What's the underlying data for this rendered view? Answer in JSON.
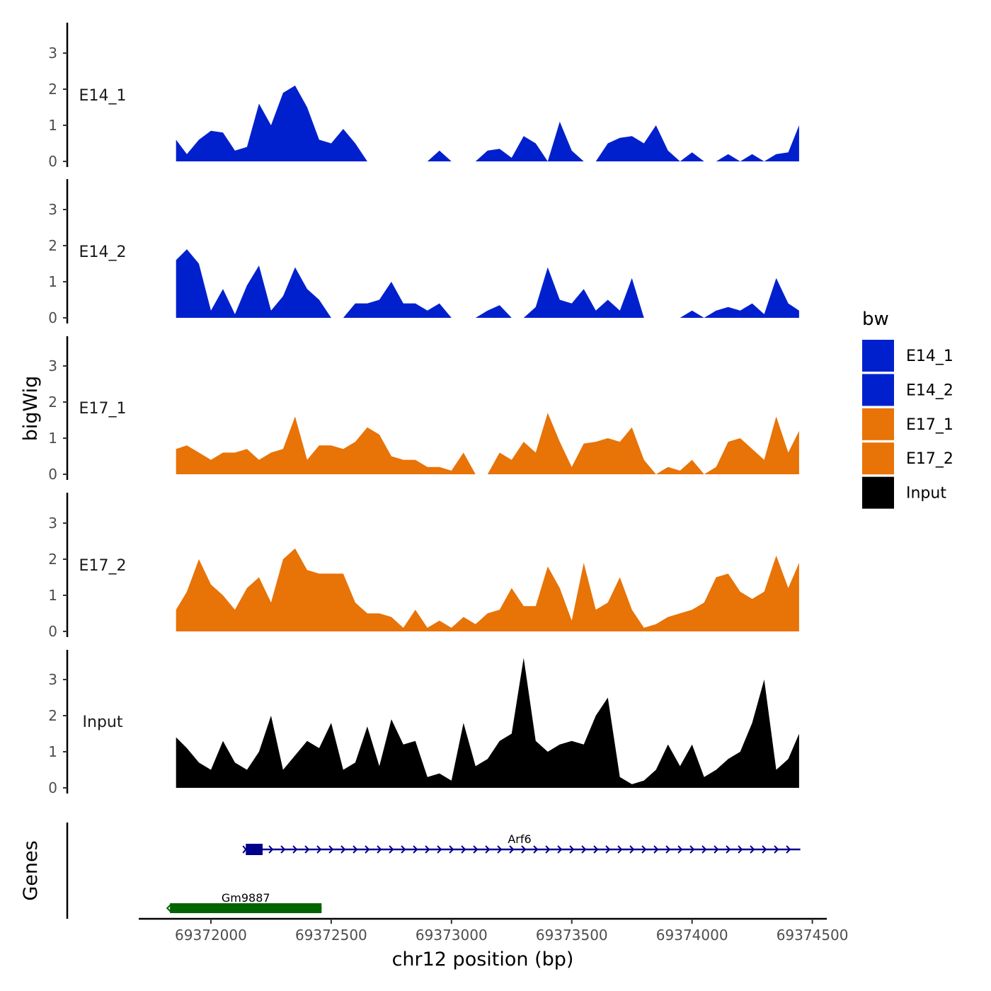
{
  "chart_data": {
    "type": "area",
    "xlabel": "chr12 position (bp)",
    "ylabel": "bigWig",
    "genes_label": "Genes",
    "xlim": [
      69371700,
      69374560
    ],
    "ylim": [
      0,
      3.9
    ],
    "x_ticks": [
      69372000,
      69372500,
      69373000,
      69373500,
      69374000,
      69374500
    ],
    "x_tick_labels": [
      "69372000",
      "69372500",
      "69373000",
      "69373500",
      "69374000",
      "69374500"
    ],
    "y_ticks": [
      0,
      1,
      2,
      3
    ],
    "y_tick_labels": [
      "0",
      "1",
      "2",
      "3"
    ],
    "legend": {
      "title": "bw",
      "items": [
        {
          "label": "E14_1",
          "color": "#0020CD"
        },
        {
          "label": "E14_2",
          "color": "#0020CD"
        },
        {
          "label": "E17_1",
          "color": "#E87307"
        },
        {
          "label": "E17_2",
          "color": "#E87307"
        },
        {
          "label": "Input",
          "color": "#000000"
        }
      ]
    },
    "x": [
      69371855,
      69371900,
      69371950,
      69372000,
      69372050,
      69372100,
      69372150,
      69372200,
      69372250,
      69372300,
      69372350,
      69372400,
      69372450,
      69372500,
      69372550,
      69372600,
      69372650,
      69372700,
      69372750,
      69372800,
      69372850,
      69372900,
      69372950,
      69373000,
      69373050,
      69373100,
      69373150,
      69373200,
      69373250,
      69373300,
      69373350,
      69373400,
      69373450,
      69373500,
      69373550,
      69373600,
      69373650,
      69373700,
      69373750,
      69373800,
      69373850,
      69373900,
      69373950,
      69374000,
      69374050,
      69374100,
      69374150,
      69374200,
      69374250,
      69374300,
      69374350,
      69374400,
      69374445
    ],
    "series": [
      {
        "name": "E14_1",
        "color": "#0020CD",
        "values": [
          0.6,
          0.2,
          0.6,
          0.85,
          0.8,
          0.3,
          0.4,
          1.6,
          1.0,
          1.9,
          2.1,
          1.5,
          0.6,
          0.5,
          0.9,
          0.5,
          0,
          0,
          0,
          0,
          0,
          0,
          0.3,
          0,
          0,
          0,
          0.3,
          0.35,
          0.1,
          0.7,
          0.5,
          0,
          1.1,
          0.3,
          0,
          0,
          0.5,
          0.65,
          0.7,
          0.5,
          1.0,
          0.3,
          0,
          0.25,
          0,
          0,
          0.2,
          0,
          0.2,
          0,
          0.2,
          0.25,
          1.0
        ]
      },
      {
        "name": "E14_2",
        "color": "#0020CD",
        "values": [
          1.6,
          1.9,
          1.5,
          0.2,
          0.8,
          0.1,
          0.9,
          1.45,
          0.2,
          0.6,
          1.4,
          0.8,
          0.5,
          0,
          0,
          0.4,
          0.4,
          0.5,
          1.0,
          0.4,
          0.4,
          0.2,
          0.4,
          0,
          0,
          0,
          0.2,
          0.35,
          0,
          0,
          0.3,
          1.4,
          0.5,
          0.4,
          0.8,
          0.2,
          0.5,
          0.2,
          1.1,
          0,
          0,
          0,
          0,
          0.2,
          0,
          0.2,
          0.3,
          0.2,
          0.4,
          0.1,
          1.1,
          0.4,
          0.2
        ]
      },
      {
        "name": "E17_1",
        "color": "#E87307",
        "values": [
          0.7,
          0.8,
          0.6,
          0.4,
          0.6,
          0.6,
          0.7,
          0.4,
          0.6,
          0.7,
          1.6,
          0.4,
          0.8,
          0.8,
          0.7,
          0.9,
          1.3,
          1.1,
          0.5,
          0.4,
          0.4,
          0.2,
          0.2,
          0.1,
          0.6,
          0,
          0,
          0.6,
          0.4,
          0.9,
          0.6,
          1.7,
          0.9,
          0.2,
          0.85,
          0.9,
          1.0,
          0.9,
          1.3,
          0.4,
          0,
          0.2,
          0.1,
          0.4,
          0,
          0.2,
          0.9,
          1.0,
          0.7,
          0.4,
          1.6,
          0.6,
          1.2
        ]
      },
      {
        "name": "E17_2",
        "color": "#E87307",
        "values": [
          0.6,
          1.1,
          2.0,
          1.3,
          1.0,
          0.6,
          1.2,
          1.5,
          0.8,
          2.0,
          2.3,
          1.7,
          1.6,
          1.6,
          1.6,
          0.8,
          0.5,
          0.5,
          0.4,
          0.1,
          0.6,
          0.1,
          0.3,
          0.1,
          0.4,
          0.2,
          0.5,
          0.6,
          1.2,
          0.7,
          0.7,
          1.8,
          1.2,
          0.3,
          1.9,
          0.6,
          0.8,
          1.5,
          0.6,
          0.1,
          0.2,
          0.4,
          0.5,
          0.6,
          0.8,
          1.5,
          1.6,
          1.1,
          0.9,
          1.1,
          2.1,
          1.2,
          1.9
        ]
      },
      {
        "name": "Input",
        "color": "#000000",
        "values": [
          1.4,
          1.1,
          0.7,
          0.5,
          1.3,
          0.7,
          0.5,
          1.0,
          2.0,
          0.5,
          0.9,
          1.3,
          1.1,
          1.8,
          0.5,
          0.7,
          1.7,
          0.6,
          1.9,
          1.2,
          1.3,
          0.3,
          0.4,
          0.2,
          1.8,
          0.6,
          0.8,
          1.3,
          1.5,
          3.6,
          1.3,
          1.0,
          1.2,
          1.3,
          1.2,
          2.0,
          2.5,
          0.3,
          0.1,
          0.2,
          0.5,
          1.2,
          0.6,
          1.2,
          0.3,
          0.5,
          0.8,
          1.0,
          1.8,
          3.0,
          0.5,
          0.8,
          1.5
        ]
      }
    ],
    "genes": [
      {
        "name": "Arf6",
        "start": 69372145,
        "end": 69374450,
        "strand": "+",
        "exon_start": 69372145,
        "exon_end": 69372215,
        "color": "#00008B"
      },
      {
        "name": "Gm9887",
        "start": 69371830,
        "end": 69372460,
        "strand": "-",
        "exon_start": 69371830,
        "exon_end": 69372460,
        "color": "#006400"
      }
    ]
  }
}
